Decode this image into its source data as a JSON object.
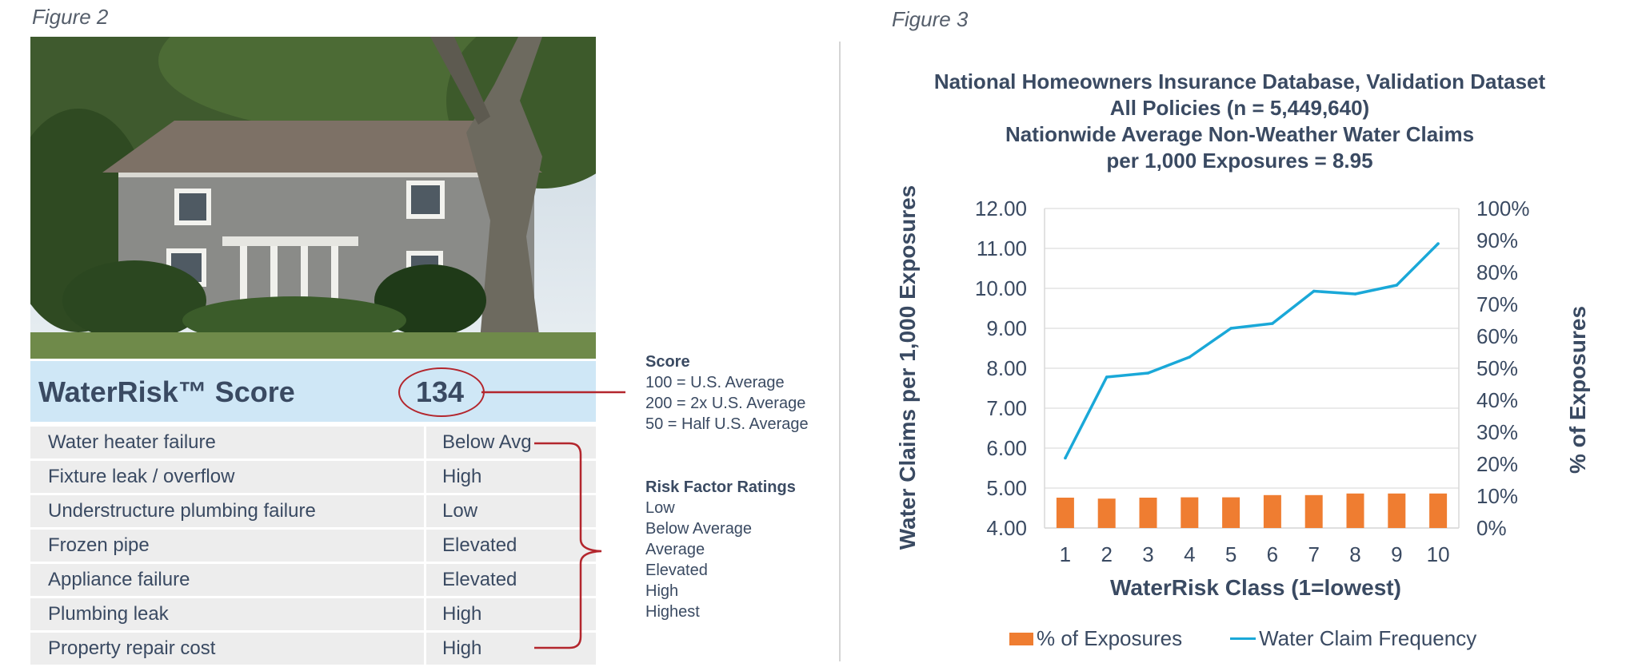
{
  "figure2": {
    "caption": "Figure 2",
    "score_title": "WaterRisk™ Score",
    "score_value": "134",
    "factors": [
      {
        "name": "Water heater failure",
        "rating": "Below Avg"
      },
      {
        "name": "Fixture leak / overflow",
        "rating": "High"
      },
      {
        "name": "Understructure plumbing failure",
        "rating": "Low"
      },
      {
        "name": "Frozen pipe",
        "rating": "Elevated"
      },
      {
        "name": "Appliance failure",
        "rating": "Elevated"
      },
      {
        "name": "Plumbing leak",
        "rating": "High"
      },
      {
        "name": "Property repair cost",
        "rating": "High"
      }
    ],
    "score_legend": {
      "heading": "Score",
      "lines": [
        "100 = U.S. Average",
        "200 = 2x U.S. Average",
        "50 = Half U.S. Average"
      ]
    },
    "rating_legend": {
      "heading": "Risk Factor Ratings",
      "lines": [
        "Low",
        "Below Average",
        "Average",
        "Elevated",
        "High",
        "Highest"
      ]
    },
    "colors": {
      "score_band": "#cfe7f6",
      "connector": "#b3262d"
    }
  },
  "figure3": {
    "caption": "Figure 3",
    "chart_data": {
      "type": "bar",
      "title_lines": [
        "National Homeowners Insurance Database, Validation Dataset",
        "All Policies (n = 5,449,640)",
        "Nationwide Average Non-Weather Water Claims",
        "per 1,000 Exposures = 8.95"
      ],
      "xlabel": "WaterRisk Class (1=lowest)",
      "ylabel": "Water Claims per 1,000 Exposures",
      "y2label": "% of Exposures",
      "categories": [
        "1",
        "2",
        "3",
        "4",
        "5",
        "6",
        "7",
        "8",
        "9",
        "10"
      ],
      "ylim": [
        4.0,
        12.0
      ],
      "y_ticks": [
        "4.00",
        "5.00",
        "6.00",
        "7.00",
        "8.00",
        "9.00",
        "10.00",
        "11.00",
        "12.00"
      ],
      "y2lim": [
        0,
        100
      ],
      "y2_ticks": [
        "0%",
        "10%",
        "20%",
        "30%",
        "40%",
        "50%",
        "60%",
        "70%",
        "80%",
        "90%",
        "100%"
      ],
      "grid": true,
      "legend_position": "bottom",
      "series": [
        {
          "name": "% of Exposures",
          "kind": "bar",
          "axis": "right",
          "color": "#ef7d31",
          "values": [
            9.5,
            9.2,
            9.5,
            9.6,
            9.6,
            10.3,
            10.3,
            10.8,
            10.8,
            10.8
          ]
        },
        {
          "name": "Water Claim Frequency",
          "kind": "line",
          "axis": "left",
          "color": "#1aa8d8",
          "values": [
            5.75,
            7.78,
            7.88,
            8.28,
            9.0,
            9.12,
            9.93,
            9.86,
            10.08,
            11.12
          ]
        }
      ]
    }
  }
}
